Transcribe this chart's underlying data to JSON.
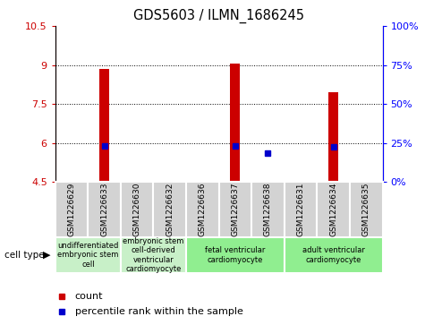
{
  "title": "GDS5603 / ILMN_1686245",
  "samples": [
    "GSM1226629",
    "GSM1226633",
    "GSM1226630",
    "GSM1226632",
    "GSM1226636",
    "GSM1226637",
    "GSM1226638",
    "GSM1226631",
    "GSM1226634",
    "GSM1226635"
  ],
  "count_values": [
    4.5,
    8.85,
    4.5,
    4.5,
    4.5,
    9.05,
    4.55,
    4.5,
    7.95,
    4.5
  ],
  "percentile_values": [
    null,
    5.9,
    null,
    null,
    null,
    5.9,
    5.6,
    null,
    5.85,
    null
  ],
  "ylim_left": [
    4.5,
    10.5
  ],
  "yticks_left": [
    4.5,
    6,
    7.5,
    9,
    10.5
  ],
  "ytick_labels_left": [
    "4.5",
    "6",
    "7.5",
    "9",
    "10.5"
  ],
  "yticks_right": [
    0,
    25,
    50,
    75,
    100
  ],
  "ytick_labels_right": [
    "0%",
    "25%",
    "50%",
    "75%",
    "100%"
  ],
  "cell_type_groups": [
    {
      "label": "undifferentiated\nembryonic stem\ncell",
      "start": 0,
      "end": 2,
      "color": "#c8f0c8"
    },
    {
      "label": "embryonic stem\ncell-derived\nventricular\ncardiomyocyte",
      "start": 2,
      "end": 4,
      "color": "#c8f0c8"
    },
    {
      "label": "fetal ventricular\ncardiomyocyte",
      "start": 4,
      "end": 7,
      "color": "#90ee90"
    },
    {
      "label": "adult ventricular\ncardiomyocyte",
      "start": 7,
      "end": 10,
      "color": "#90ee90"
    }
  ],
  "bar_color": "#cc0000",
  "dot_color": "#0000cc",
  "bar_baseline": 4.5,
  "grid_yticks": [
    6,
    7.5,
    9
  ],
  "legend_count_label": "count",
  "legend_percentile_label": "percentile rank within the sample",
  "cell_type_label": "cell type"
}
